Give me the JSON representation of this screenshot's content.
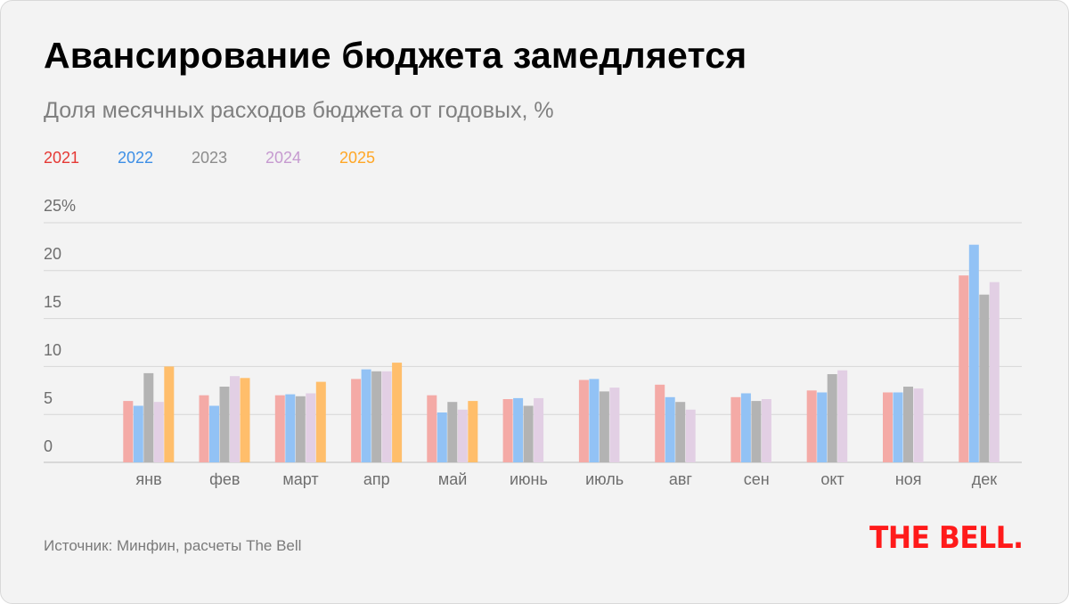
{
  "header": {
    "title": "Авансирование бюджета замедляется",
    "subtitle": "Доля месячных расходов бюджета от годовых, %"
  },
  "footer": {
    "source": "Источник: Минфин, расчеты The Bell",
    "logo": "THE BELL."
  },
  "y_axis": {
    "tick_labels": [
      "25%",
      "20",
      "15",
      "10",
      "5",
      "0"
    ]
  },
  "chart_data": {
    "type": "bar",
    "title": "Авансирование бюджета замедляется",
    "subtitle": "Доля месячных расходов бюджета от годовых, %",
    "xlabel": "",
    "ylabel": "",
    "ylim": [
      0,
      25
    ],
    "grid": true,
    "legend_position": "top-left",
    "categories": [
      "янв",
      "фев",
      "март",
      "апр",
      "май",
      "июнь",
      "июль",
      "авг",
      "сен",
      "окт",
      "ноя",
      "дек"
    ],
    "series": [
      {
        "name": "2021",
        "color": "#f4aaa6",
        "legend_color": "#e53935",
        "values": [
          6.4,
          7.0,
          7.0,
          8.7,
          7.0,
          6.6,
          8.6,
          8.1,
          6.8,
          7.5,
          7.3,
          19.5
        ]
      },
      {
        "name": "2022",
        "color": "#92c2f5",
        "legend_color": "#3d8fe6",
        "values": [
          5.9,
          5.9,
          7.1,
          9.7,
          5.2,
          6.7,
          8.7,
          6.8,
          7.2,
          7.3,
          7.3,
          22.7
        ]
      },
      {
        "name": "2023",
        "color": "#b3b3b3",
        "legend_color": "#8c8c8c",
        "values": [
          9.3,
          7.9,
          6.9,
          9.5,
          6.3,
          5.9,
          7.4,
          6.3,
          6.4,
          9.2,
          7.9,
          17.5
        ]
      },
      {
        "name": "2024",
        "color": "#e2cfe4",
        "legend_color": "#c69ad0",
        "values": [
          6.3,
          9.0,
          7.2,
          9.5,
          5.5,
          6.7,
          7.8,
          5.5,
          6.6,
          9.6,
          7.7,
          18.8
        ]
      },
      {
        "name": "2025",
        "color": "#ffbe6b",
        "legend_color": "#ffa726",
        "values": [
          10.0,
          8.8,
          8.4,
          10.4,
          6.4,
          null,
          null,
          null,
          null,
          null,
          null,
          null
        ]
      }
    ]
  }
}
